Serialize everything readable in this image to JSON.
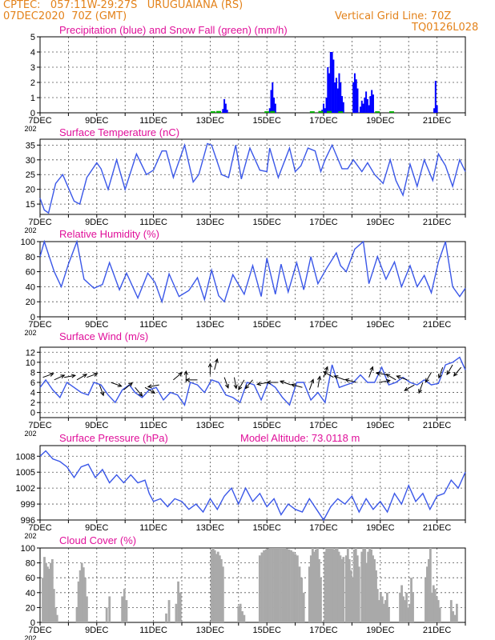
{
  "header": {
    "line1": "CPTEC:   057:11W-29:27S   URUGUAIANA (RS)",
    "line2": "07DEC2020  70Z (GMT)",
    "grid_note": "Vertical Grid Line: 70Z",
    "code": "TQ0126L028"
  },
  "colors": {
    "header": "#e3821a",
    "titles": "#e0109a",
    "precip": "#0000ff",
    "snow": "#00b000",
    "line": "#3a57e8",
    "cloud": "#a9a9a9",
    "axes": "#000000",
    "grid": "#555555"
  },
  "x_axis": {
    "range_days": [
      7,
      22
    ],
    "tick_days": [
      7,
      9,
      11,
      13,
      15,
      17,
      19,
      21
    ],
    "tick_labels": [
      "7DEC",
      "9DEC",
      "11DEC",
      "13DEC",
      "15DEC",
      "17DEC",
      "19DEC",
      "21DEC"
    ],
    "below_first_label": "202"
  },
  "chart_data": [
    {
      "type": "bar",
      "title": "Precipitation (blue) and Snow Fall (green) (mm/h)",
      "ylim": [
        0,
        5
      ],
      "yticks": [
        0,
        1,
        2,
        3,
        4,
        5
      ],
      "series": [
        {
          "values": [
            [
              13.45,
              0.25
            ],
            [
              13.5,
              0.9
            ],
            [
              13.55,
              0.6
            ],
            [
              13.6,
              0.2
            ],
            [
              15.1,
              0.3
            ],
            [
              15.15,
              1.5
            ],
            [
              15.2,
              2.0
            ],
            [
              15.25,
              1.0
            ],
            [
              15.3,
              0.6
            ],
            [
              16.95,
              0.2
            ],
            [
              17.0,
              0.6
            ],
            [
              17.05,
              0.3
            ],
            [
              17.1,
              1.0
            ],
            [
              17.15,
              3.0
            ],
            [
              17.2,
              2.6
            ],
            [
              17.25,
              4.0
            ],
            [
              17.3,
              4.0
            ],
            [
              17.35,
              3.5
            ],
            [
              17.4,
              2.0
            ],
            [
              17.45,
              2.3
            ],
            [
              17.5,
              1.6
            ],
            [
              17.55,
              2.6
            ],
            [
              17.6,
              2.0
            ],
            [
              17.65,
              1.1
            ],
            [
              17.7,
              0.7
            ],
            [
              18.05,
              2.0
            ],
            [
              18.1,
              2.6
            ],
            [
              18.15,
              2.2
            ],
            [
              18.2,
              1.6
            ],
            [
              18.3,
              0.4
            ],
            [
              18.35,
              0.8
            ],
            [
              18.4,
              0.6
            ],
            [
              18.45,
              1.0
            ],
            [
              18.5,
              1.4
            ],
            [
              18.55,
              0.9
            ],
            [
              18.6,
              0.5
            ],
            [
              18.65,
              1.1
            ],
            [
              18.7,
              1.5
            ],
            [
              18.75,
              1.2
            ],
            [
              20.9,
              0.3
            ],
            [
              20.95,
              2.1
            ],
            [
              21.0,
              0.5
            ]
          ]
        },
        {
          "values": [
            [
              13.1,
              0.1
            ],
            [
              13.3,
              0.12
            ],
            [
              15.0,
              0.1
            ],
            [
              15.2,
              0.12
            ],
            [
              16.6,
              0.1
            ],
            [
              16.9,
              0.12
            ],
            [
              17.2,
              0.12
            ],
            [
              17.6,
              0.1
            ],
            [
              18.9,
              0.1
            ],
            [
              19.4,
              0.1
            ]
          ]
        }
      ]
    },
    {
      "type": "line",
      "title": "Surface Temperature (nC)",
      "ylim": [
        11.5,
        37
      ],
      "yticks": [
        15,
        20,
        25,
        30,
        35
      ],
      "x": [
        7.0,
        7.15,
        7.3,
        7.55,
        7.8,
        8.0,
        8.2,
        8.4,
        8.65,
        9.0,
        9.15,
        9.4,
        9.7,
        10.0,
        10.4,
        10.75,
        11.0,
        11.3,
        11.45,
        11.7,
        12.1,
        12.4,
        12.6,
        12.9,
        13.05,
        13.4,
        13.65,
        13.9,
        14.1,
        14.4,
        14.75,
        15.0,
        15.1,
        15.4,
        15.8,
        16.0,
        16.2,
        16.45,
        16.7,
        16.9,
        17.05,
        17.3,
        17.65,
        17.85,
        18.05,
        18.35,
        18.55,
        18.8,
        19.1,
        19.35,
        19.55,
        19.8,
        20.05,
        20.3,
        20.55,
        20.85,
        21.05,
        21.3,
        21.55,
        21.8,
        22.0
      ],
      "y": [
        17,
        13,
        12,
        22,
        25,
        20.5,
        16,
        15,
        24,
        29,
        27,
        20,
        30,
        20,
        32,
        25,
        26.5,
        33,
        33,
        24,
        35,
        22.5,
        25,
        35.5,
        35,
        25,
        24,
        35,
        23.5,
        34,
        26.5,
        26,
        34,
        24,
        34,
        26,
        28,
        34,
        33,
        26,
        30,
        35,
        27,
        27,
        30,
        26,
        29,
        25,
        22,
        30,
        23,
        18,
        28.5,
        21,
        30,
        23,
        32,
        28,
        21,
        30,
        26
      ]
    },
    {
      "type": "line",
      "title": "Relative Humidity (%)",
      "ylim": [
        0,
        100
      ],
      "yticks": [
        0,
        20,
        40,
        60,
        80,
        100
      ],
      "x": [
        7.0,
        7.15,
        7.5,
        7.75,
        8.0,
        8.3,
        8.55,
        8.9,
        9.2,
        9.45,
        9.8,
        10.05,
        10.45,
        10.8,
        11.05,
        11.3,
        11.55,
        11.9,
        12.25,
        12.55,
        12.8,
        13.05,
        13.3,
        13.5,
        13.8,
        14.2,
        14.5,
        14.8,
        15.0,
        15.3,
        15.5,
        15.75,
        16.05,
        16.3,
        16.55,
        16.8,
        17.1,
        17.45,
        17.6,
        17.8,
        18.1,
        18.4,
        18.6,
        18.9,
        19.2,
        19.5,
        19.75,
        20.05,
        20.3,
        20.55,
        20.8,
        21.05,
        21.3,
        21.55,
        21.8,
        22.0
      ],
      "y": [
        80,
        100,
        60,
        40,
        70,
        100,
        50,
        38,
        43,
        72,
        36,
        58,
        25,
        58,
        46,
        20,
        57,
        27,
        35,
        52,
        23,
        62,
        28,
        20,
        56,
        30,
        68,
        27,
        78,
        30,
        70,
        33,
        72,
        36,
        80,
        44,
        64,
        85,
        68,
        60,
        90,
        100,
        44,
        80,
        50,
        73,
        40,
        68,
        40,
        55,
        32,
        73,
        100,
        40,
        27,
        38
      ]
    },
    {
      "type": "line",
      "title": "Surface Wind (m/s)",
      "ylim": [
        -1,
        13
      ],
      "yticks": [
        0,
        2,
        4,
        6,
        8,
        10,
        12
      ],
      "x": [
        7.0,
        7.2,
        7.45,
        7.7,
        7.95,
        8.2,
        8.45,
        8.7,
        8.9,
        9.15,
        9.4,
        9.65,
        9.9,
        10.15,
        10.35,
        10.6,
        10.85,
        11.1,
        11.35,
        11.6,
        11.85,
        12.1,
        12.3,
        12.55,
        12.8,
        13.05,
        13.3,
        13.55,
        13.8,
        14.05,
        14.3,
        14.55,
        14.8,
        15.05,
        15.3,
        15.55,
        15.8,
        16.05,
        16.3,
        16.55,
        16.8,
        17.05,
        17.3,
        17.55,
        17.8,
        18.05,
        18.3,
        18.55,
        18.8,
        19.05,
        19.3,
        19.55,
        19.8,
        20.05,
        20.3,
        20.55,
        20.8,
        21.05,
        21.3,
        21.55,
        21.8,
        22.0
      ],
      "y": [
        5,
        6.5,
        4.5,
        3,
        6,
        5,
        4,
        3.5,
        6,
        5.5,
        3.5,
        2,
        4.5,
        5.5,
        4,
        3,
        4.5,
        5,
        2.5,
        4,
        3.5,
        1.5,
        6,
        5.5,
        4,
        6.5,
        6,
        3.5,
        3,
        2,
        6,
        5.5,
        2.5,
        6,
        5,
        3,
        1.5,
        6,
        6,
        2.5,
        4,
        2,
        9.5,
        5,
        5.5,
        6,
        7.5,
        6,
        6,
        9,
        5.5,
        6,
        7,
        6,
        5.5,
        6.5,
        5.5,
        5.8,
        9.5,
        10,
        11,
        8.5
      ]
    },
    {
      "type": "line",
      "title": "Surface Pressure (hPa)",
      "annotation": "Model Altitude: 73.0118  m",
      "ylim": [
        996,
        1010
      ],
      "yticks": [
        996,
        999,
        1002,
        1005,
        1008
      ],
      "x": [
        7.0,
        7.2,
        7.45,
        7.7,
        7.95,
        8.2,
        8.45,
        8.7,
        8.95,
        9.2,
        9.45,
        9.7,
        9.95,
        10.2,
        10.45,
        10.7,
        10.85,
        11.0,
        11.25,
        11.5,
        11.75,
        12.0,
        12.25,
        12.5,
        12.75,
        13.0,
        13.25,
        13.5,
        13.75,
        14.0,
        14.25,
        14.5,
        14.75,
        15.0,
        15.25,
        15.5,
        15.75,
        16.0,
        16.25,
        16.5,
        16.75,
        17.0,
        17.25,
        17.5,
        17.75,
        18.0,
        18.25,
        18.5,
        18.75,
        19.0,
        19.25,
        19.5,
        19.75,
        20.0,
        20.25,
        20.5,
        20.75,
        21.0,
        21.25,
        21.5,
        21.75,
        22.0
      ],
      "y": [
        1008,
        1009,
        1007.5,
        1007,
        1006,
        1004,
        1006,
        1006.5,
        1004,
        1005.5,
        1003,
        1004.5,
        1003,
        1004.5,
        1003,
        1003.5,
        1001,
        999.5,
        1000,
        998.5,
        1000,
        999.5,
        998,
        999,
        997.5,
        1000,
        998,
        1000.5,
        1002,
        999,
        1002,
        999.5,
        1001,
        998.5,
        1000,
        997,
        999,
        998,
        997.5,
        1000,
        998,
        996,
        998.5,
        1000,
        999,
        1000.5,
        997.5,
        1000,
        998,
        999.5,
        997.5,
        1001,
        999,
        1002.5,
        999.5,
        1001,
        998,
        1000.5,
        1001,
        1003.5,
        1002,
        1005
      ]
    },
    {
      "type": "bar",
      "title": "Cloud Cover (%)",
      "ylim": [
        0,
        100
      ],
      "yticks": [
        0,
        20,
        40,
        60,
        80,
        100
      ],
      "bands": [
        {
          "from": 7.1,
          "to": 7.6,
          "levels": [
            60,
            88,
            80,
            75,
            72,
            80,
            85,
            45,
            20,
            10
          ]
        },
        {
          "from": 8.3,
          "to": 8.65,
          "levels": [
            20,
            55,
            70,
            80,
            74,
            60,
            35
          ]
        },
        {
          "from": 9.35,
          "to": 9.45,
          "levels": [
            20,
            35
          ]
        },
        {
          "from": 9.9,
          "to": 10.05,
          "levels": [
            35,
            45,
            30
          ]
        },
        {
          "from": 11.45,
          "to": 11.55,
          "levels": [
            12,
            30
          ]
        },
        {
          "from": 11.8,
          "to": 11.95,
          "levels": [
            25,
            55,
            40
          ]
        },
        {
          "from": 13.05,
          "to": 13.45,
          "levels": [
            98,
            100,
            97,
            92,
            95,
            90,
            85,
            75
          ]
        },
        {
          "from": 14.0,
          "to": 14.2,
          "levels": [
            22,
            25,
            15,
            10
          ]
        },
        {
          "from": 14.75,
          "to": 16.3,
          "levels": [
            90,
            94,
            97,
            98,
            99,
            100,
            100,
            100,
            100,
            100,
            100,
            100,
            100,
            99,
            98,
            97,
            95,
            92,
            90,
            75,
            60,
            40
          ]
        },
        {
          "from": 16.5,
          "to": 16.9,
          "levels": [
            75,
            90,
            100,
            95,
            98,
            100,
            85,
            60
          ]
        },
        {
          "from": 17.05,
          "to": 17.7,
          "levels": [
            95,
            100,
            100,
            100,
            100,
            100,
            98,
            100,
            100,
            95,
            90,
            85,
            88
          ]
        },
        {
          "from": 17.8,
          "to": 18.25,
          "levels": [
            90,
            100,
            85,
            70,
            60,
            98,
            100,
            90,
            75
          ]
        },
        {
          "from": 18.35,
          "to": 18.85,
          "levels": [
            95,
            100,
            100,
            80,
            95,
            100,
            98,
            90,
            85,
            70
          ]
        },
        {
          "from": 18.9,
          "to": 19.3,
          "levels": [
            45,
            30,
            40,
            35,
            25,
            30,
            40,
            20
          ]
        },
        {
          "from": 19.7,
          "to": 20.15,
          "levels": [
            40,
            50,
            35,
            30,
            40,
            20,
            25,
            60,
            40
          ]
        },
        {
          "from": 20.6,
          "to": 21.1,
          "levels": [
            60,
            75,
            85,
            100,
            40,
            50,
            45,
            35,
            30,
            20
          ]
        },
        {
          "from": 21.5,
          "to": 21.7,
          "levels": [
            30,
            15,
            10,
            25
          ]
        }
      ]
    }
  ],
  "wind_arrows": [
    [
      7.1,
      7,
      250
    ],
    [
      7.5,
      6.5,
      245
    ],
    [
      7.85,
      7,
      260
    ],
    [
      8.3,
      6.5,
      240
    ],
    [
      8.65,
      7,
      250
    ],
    [
      9.1,
      5.5,
      340
    ],
    [
      9.5,
      6,
      290
    ],
    [
      9.95,
      4.5,
      230
    ],
    [
      10.35,
      5,
      320
    ],
    [
      10.7,
      5,
      300
    ],
    [
      11.2,
      5.5,
      80
    ],
    [
      11.7,
      6.5,
      230
    ],
    [
      12.15,
      6,
      180
    ],
    [
      12.55,
      6.5,
      90
    ],
    [
      13.0,
      7.5,
      180
    ],
    [
      13.15,
      8.5,
      195
    ],
    [
      13.5,
      7,
      340
    ],
    [
      13.85,
      7,
      350
    ],
    [
      14.2,
      6.5,
      30
    ],
    [
      14.5,
      6.5,
      40
    ],
    [
      15.05,
      6,
      80
    ],
    [
      15.4,
      6,
      90
    ],
    [
      15.85,
      5.5,
      110
    ],
    [
      16.25,
      5,
      105
    ],
    [
      16.5,
      4.5,
      200
    ],
    [
      16.8,
      5,
      190
    ],
    [
      17.0,
      7,
      200
    ],
    [
      17.35,
      7,
      120
    ],
    [
      17.75,
      6.5,
      110
    ],
    [
      18.15,
      6,
      105
    ],
    [
      18.6,
      7,
      200
    ],
    [
      18.95,
      6,
      260
    ],
    [
      19.25,
      7.5,
      100
    ],
    [
      19.55,
      6.5,
      120
    ],
    [
      19.95,
      6.5,
      110
    ],
    [
      20.2,
      5.5,
      60
    ],
    [
      20.5,
      6,
      20
    ],
    [
      20.8,
      8,
      30
    ],
    [
      21.2,
      9,
      20
    ],
    [
      21.55,
      9.5,
      30
    ],
    [
      21.85,
      9,
      40
    ]
  ]
}
